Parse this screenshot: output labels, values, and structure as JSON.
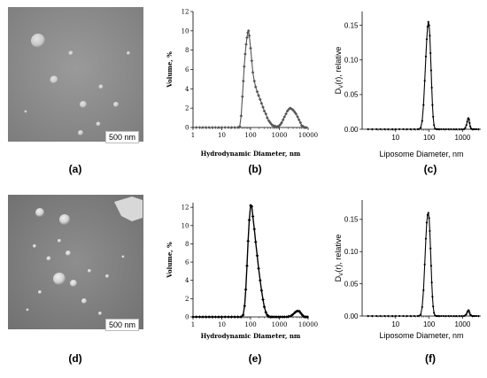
{
  "micrographs": [
    {
      "scale_label": "500 nm"
    },
    {
      "scale_label": "500 nm"
    }
  ],
  "panel_labels": [
    "(a)",
    "(b)",
    "(c)",
    "(d)",
    "(e)",
    "(f)"
  ],
  "chart_data": [
    {
      "id": "b",
      "type": "line",
      "title": "",
      "xlabel": "Hydrodynamic Diameter, nm",
      "ylabel": "Volume, %",
      "xscale": "log",
      "xlim": [
        1,
        10000
      ],
      "ylim": [
        0,
        12
      ],
      "xticks": [
        "1",
        "10",
        "100",
        "1000",
        "10000"
      ],
      "yticks": [
        "0",
        "2",
        "4",
        "6",
        "8",
        "10",
        "12"
      ],
      "marker": "diamond",
      "color": "#555555",
      "series": [
        {
          "x": [
            1,
            1.3,
            1.7,
            2.2,
            2.8,
            3.6,
            4.7,
            6,
            7.8,
            10,
            13,
            17,
            22,
            28,
            36,
            42,
            47,
            52,
            56,
            60,
            65,
            70,
            75,
            80,
            85,
            90,
            100,
            110,
            120,
            135,
            150,
            170,
            190,
            215,
            240,
            270,
            300,
            340,
            380,
            430,
            480,
            540,
            600,
            680,
            760,
            860,
            960,
            1080,
            1200,
            1350,
            1500,
            1700,
            1900,
            2150,
            2400,
            2700,
            3000,
            3400,
            3800,
            4300,
            4800,
            5400,
            6000,
            6800,
            7600,
            8600
          ],
          "y": [
            0,
            0,
            0,
            0,
            0,
            0,
            0,
            0,
            0,
            0,
            0,
            0,
            0,
            0,
            0,
            0.1,
            1.2,
            3.2,
            4.8,
            6.3,
            7.6,
            8.6,
            9.3,
            9.8,
            10.0,
            9.5,
            8.2,
            6.9,
            5.7,
            4.8,
            4.2,
            3.7,
            3.3,
            2.9,
            2.5,
            2.1,
            1.7,
            1.4,
            1.0,
            0.7,
            0.5,
            0.3,
            0.2,
            0.15,
            0.1,
            0.1,
            0.15,
            0.3,
            0.5,
            0.8,
            1.1,
            1.4,
            1.7,
            1.9,
            2.0,
            1.9,
            1.8,
            1.6,
            1.4,
            1.1,
            0.8,
            0.5,
            0.2,
            0.1,
            0,
            0
          ]
        }
      ]
    },
    {
      "id": "c",
      "type": "line",
      "title": "",
      "xlabel": "Liposome Diameter, nm",
      "ylabel": "D_V(r), relative",
      "xscale": "log",
      "xlim": [
        1,
        3500
      ],
      "ylim": [
        0,
        0.17
      ],
      "xticks": [
        "10",
        "100",
        "1000"
      ],
      "yticks": [
        "0.00",
        "0.05",
        "0.10",
        "0.15"
      ],
      "marker": "dot",
      "color": "#000000",
      "series": [
        {
          "x": [
            1.5,
            2,
            2.7,
            3.5,
            4.7,
            6,
            8,
            10,
            13,
            17,
            22,
            28,
            36,
            46,
            56,
            62,
            68,
            74,
            80,
            85,
            90,
            95,
            100,
            105,
            110,
            115,
            120,
            126,
            132,
            140,
            150,
            165,
            180,
            200,
            230,
            270,
            320,
            380,
            450,
            550,
            650,
            800,
            950,
            1100,
            1200,
            1300,
            1380,
            1450,
            1500,
            1560,
            1620,
            1700,
            1800,
            1950,
            2100,
            2300,
            2600,
            3000
          ],
          "y": [
            0,
            0,
            0,
            0,
            0,
            0,
            0,
            0,
            0,
            0,
            0,
            0,
            0,
            0,
            0.002,
            0.012,
            0.035,
            0.07,
            0.105,
            0.13,
            0.148,
            0.155,
            0.15,
            0.135,
            0.11,
            0.085,
            0.06,
            0.035,
            0.018,
            0.006,
            0.001,
            0,
            0,
            0,
            0,
            0,
            0,
            0,
            0,
            0,
            0,
            0,
            0,
            0,
            0.002,
            0.006,
            0.011,
            0.015,
            0.016,
            0.014,
            0.009,
            0.004,
            0.001,
            0,
            0,
            0,
            0,
            0
          ]
        }
      ]
    },
    {
      "id": "e",
      "type": "line",
      "title": "",
      "xlabel": "Hydrodynamic Diameter, nm",
      "ylabel": "Volume, %",
      "xscale": "log",
      "xlim": [
        1,
        10000
      ],
      "ylim": [
        0,
        12.5
      ],
      "xticks": [
        "1",
        "10",
        "100",
        "1000",
        "10000"
      ],
      "yticks": [
        "0",
        "2",
        "4",
        "6",
        "8",
        "10",
        "12"
      ],
      "marker": "diamond",
      "color": "#000000",
      "series": [
        {
          "x": [
            1,
            1.3,
            1.7,
            2.2,
            2.8,
            3.6,
            4.7,
            6,
            7.8,
            10,
            13,
            17,
            22,
            28,
            36,
            46,
            55,
            62,
            68,
            75,
            82,
            90,
            100,
            110,
            120,
            135,
            150,
            170,
            190,
            215,
            240,
            270,
            300,
            340,
            380,
            430,
            480,
            540,
            600,
            700,
            800,
            950,
            1100,
            1300,
            1500,
            1800,
            2100,
            2500,
            2900,
            3400,
            3900,
            4400,
            5000,
            5600,
            6300,
            7000,
            7800,
            8600,
            9500
          ],
          "y": [
            0,
            0,
            0,
            0,
            0,
            0,
            0,
            0,
            0,
            0,
            0,
            0,
            0,
            0,
            0,
            0,
            0.2,
            1.2,
            3.0,
            5.6,
            8.3,
            10.6,
            12.2,
            12.1,
            11.0,
            9.6,
            8.2,
            6.7,
            5.3,
            4.0,
            2.9,
            1.9,
            1.1,
            0.5,
            0.2,
            0.05,
            0,
            0,
            0,
            0,
            0,
            0,
            0,
            0,
            0,
            0,
            0.05,
            0.1,
            0.25,
            0.45,
            0.6,
            0.65,
            0.6,
            0.4,
            0.2,
            0.05,
            0,
            0,
            0
          ]
        }
      ]
    },
    {
      "id": "f",
      "type": "line",
      "title": "",
      "xlabel": "Liposome Diameter, nm",
      "ylabel": "D_V(r), relative",
      "xscale": "log",
      "xlim": [
        1,
        3500
      ],
      "ylim": [
        0,
        0.18
      ],
      "xticks": [
        "10",
        "100",
        "1000"
      ],
      "yticks": [
        "0.00",
        "0.05",
        "0.10",
        "0.15"
      ],
      "marker": "dot",
      "color": "#000000",
      "series": [
        {
          "x": [
            1.5,
            2,
            2.7,
            3.5,
            4.7,
            6,
            8,
            10,
            13,
            17,
            22,
            28,
            36,
            46,
            56,
            62,
            68,
            74,
            80,
            85,
            90,
            95,
            100,
            105,
            110,
            115,
            120,
            126,
            132,
            140,
            150,
            165,
            180,
            200,
            230,
            270,
            320,
            380,
            450,
            550,
            650,
            800,
            950,
            1100,
            1200,
            1300,
            1380,
            1450,
            1500,
            1560,
            1620,
            1700,
            1800,
            1950,
            2100,
            2300,
            2600,
            3000
          ],
          "y": [
            0,
            0,
            0,
            0,
            0,
            0,
            0,
            0,
            0,
            0,
            0,
            0,
            0,
            0,
            0.002,
            0.014,
            0.04,
            0.08,
            0.12,
            0.145,
            0.157,
            0.16,
            0.152,
            0.132,
            0.105,
            0.078,
            0.052,
            0.03,
            0.015,
            0.005,
            0.001,
            0,
            0,
            0,
            0,
            0,
            0,
            0,
            0,
            0,
            0,
            0,
            0,
            0,
            0.001,
            0.003,
            0.006,
            0.008,
            0.009,
            0.008,
            0.005,
            0.002,
            0.001,
            0,
            0,
            0,
            0,
            0
          ]
        }
      ]
    }
  ]
}
